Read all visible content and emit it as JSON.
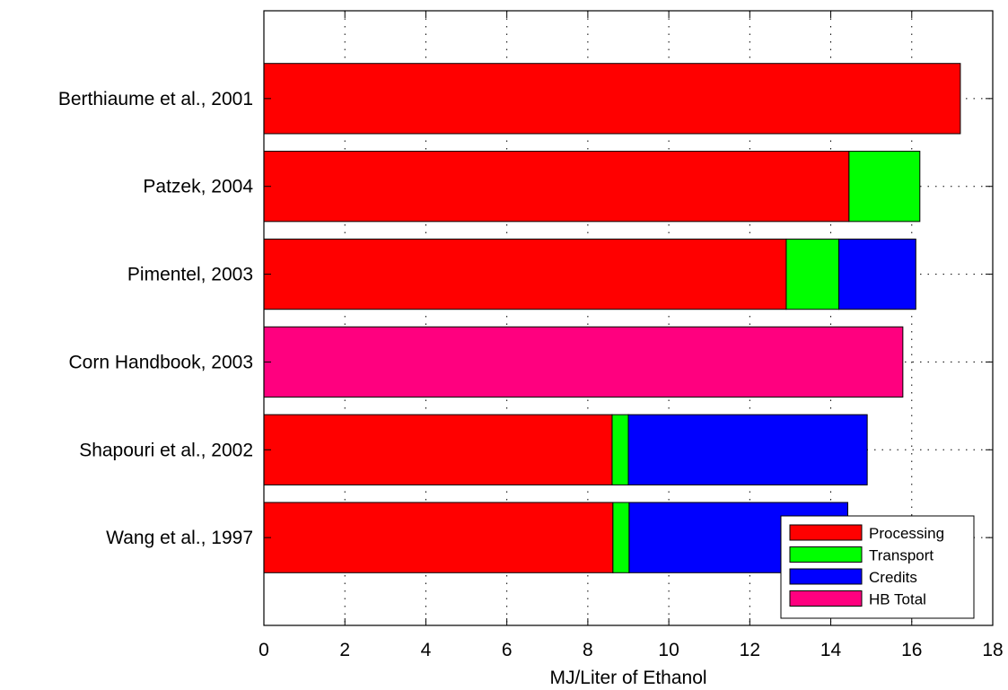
{
  "chart_data": {
    "type": "bar",
    "orientation": "horizontal",
    "stacked": true,
    "categories": [
      "Berthiaume et al., 2001",
      "Patzek, 2004",
      "Pimentel, 2003",
      "Corn Handbook, 2003",
      "Shapouri et al., 2002",
      "Wang et al., 1997"
    ],
    "series": [
      {
        "name": "Processing",
        "color": "#ff0000",
        "values": [
          17.2,
          14.45,
          12.9,
          0,
          8.6,
          8.62
        ]
      },
      {
        "name": "Transport",
        "color": "#00ff00",
        "values": [
          0,
          1.75,
          1.3,
          0,
          0.4,
          0.4
        ]
      },
      {
        "name": "Credits",
        "color": "#0000ff",
        "values": [
          0,
          0,
          1.9,
          0,
          5.9,
          5.4
        ]
      },
      {
        "name": "HB Total",
        "color": "#ff007f",
        "values": [
          0,
          0,
          0,
          15.78,
          0,
          0
        ]
      }
    ],
    "xlabel": "MJ/Liter of Ethanol",
    "xlim": [
      0,
      18
    ],
    "xticks": [
      0,
      2,
      4,
      6,
      8,
      10,
      12,
      14,
      16,
      18
    ],
    "grid": "dotted",
    "legend_position": "bottom-right"
  }
}
